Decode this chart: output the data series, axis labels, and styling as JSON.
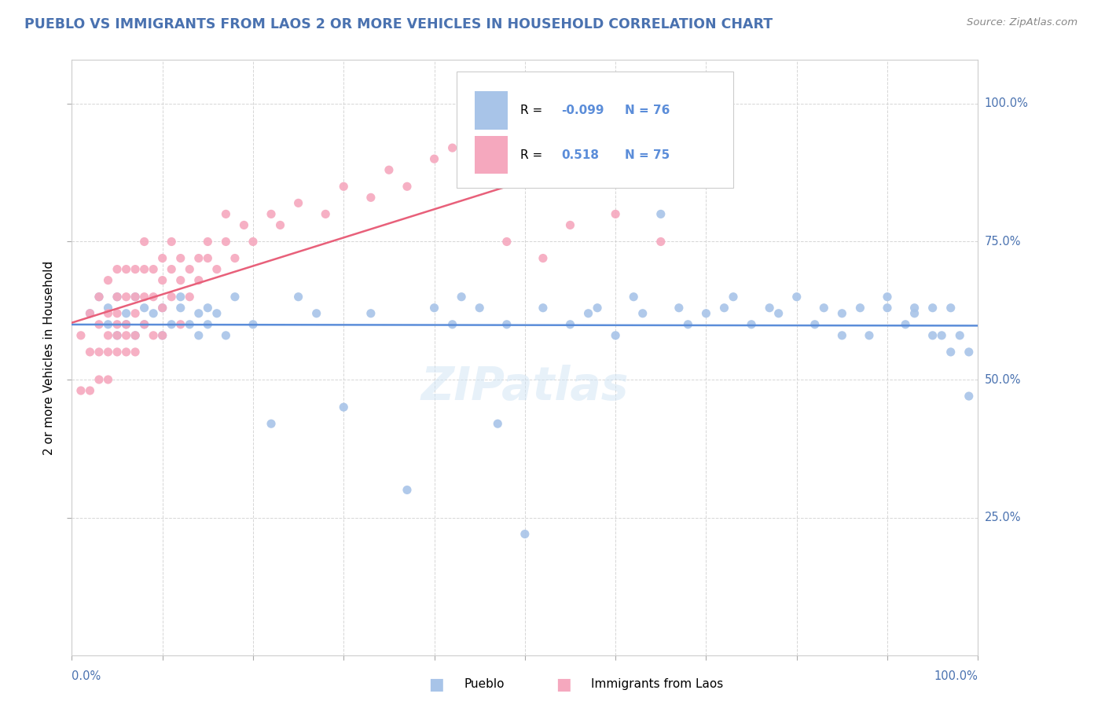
{
  "title": "PUEBLO VS IMMIGRANTS FROM LAOS 2 OR MORE VEHICLES IN HOUSEHOLD CORRELATION CHART",
  "source_text": "Source: ZipAtlas.com",
  "ylabel": "2 or more Vehicles in Household",
  "legend_label1": "Pueblo",
  "legend_label2": "Immigrants from Laos",
  "r1": "-0.099",
  "n1": "76",
  "r2": "0.518",
  "n2": "75",
  "color_blue": "#a8c4e8",
  "color_pink": "#f5a8be",
  "color_line_blue": "#5b8dd9",
  "color_line_pink": "#e8607a",
  "title_color": "#4a72b0",
  "axis_color": "#4a72b0",
  "watermark": "ZIPatlas"
}
